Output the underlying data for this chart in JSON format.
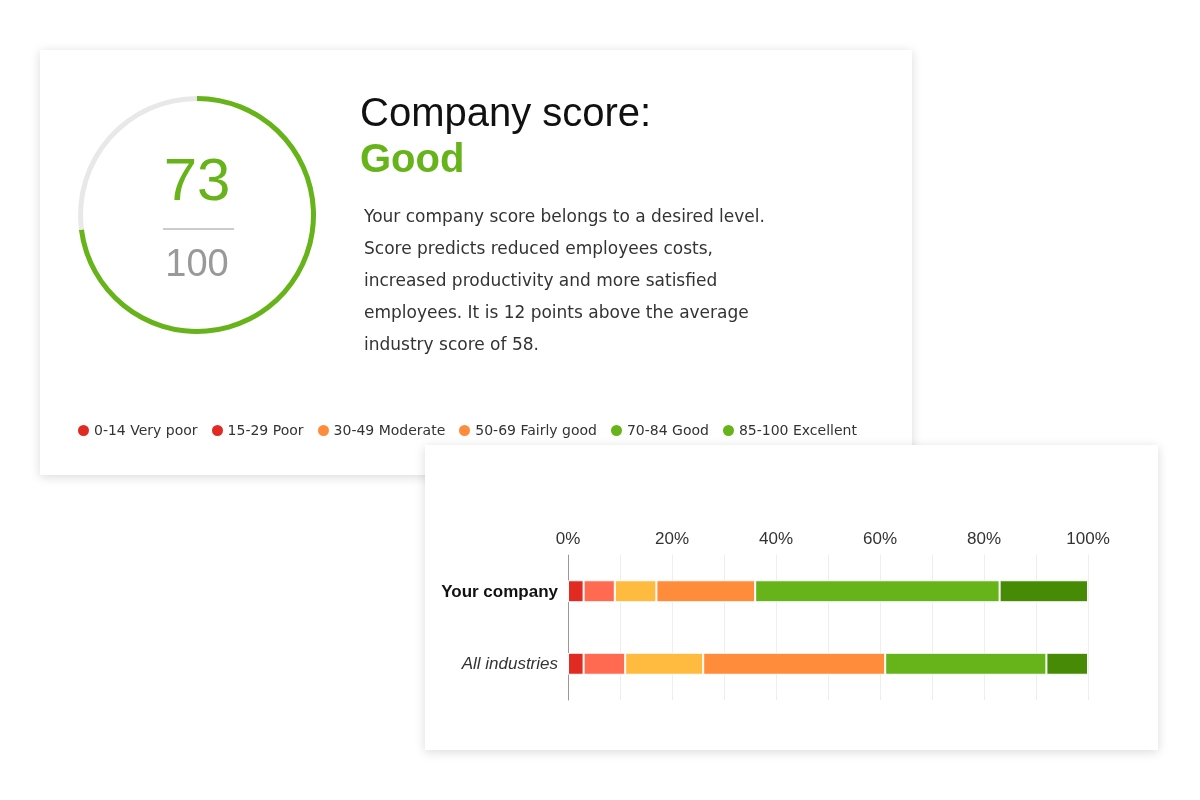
{
  "chart_data": [
    {
      "type": "donut",
      "title": "Company score:",
      "subtitle": "Good",
      "categories": [
        null,
        null
      ],
      "values": [
        73,
        27
      ],
      "colors": [
        "#66b31a",
        "#e8e8e8"
      ],
      "annotations": [
        "73",
        "100",
        "Your company score belongs to a desired level. Score predicts reduced employees costs, increased productivity and more satisfied employees. It is 12 points above the average industry score of 58.",
        "0-14 Very poor",
        "15-29 Poor",
        "30-49 Moderate",
        "50-69 Fairly good",
        "70-84 Good",
        "85-100 Excellent"
      ]
    },
    {
      "type": "bar",
      "orientation": "horizontal",
      "stacked": true,
      "categories": [
        "Your company",
        "All industries"
      ],
      "series": [
        {
          "color": "#e02a22",
          "values": [
            3,
            3
          ]
        },
        {
          "color": "#ff6a50",
          "values": [
            6,
            8
          ]
        },
        {
          "color": "#ffbb40",
          "values": [
            8,
            15
          ]
        },
        {
          "color": "#ff8c3a",
          "values": [
            19,
            35
          ]
        },
        {
          "color": "#66b31a",
          "values": [
            47,
            31
          ]
        },
        {
          "color": "#468a05",
          "values": [
            17,
            8
          ]
        }
      ],
      "xlim": [
        0,
        100
      ],
      "xticks": [
        {
          "value": 0,
          "label": "0%"
        },
        {
          "value": 10,
          "label": null
        },
        {
          "value": 20,
          "label": "20%"
        },
        {
          "value": 30,
          "label": null
        },
        {
          "value": 40,
          "label": "40%"
        },
        {
          "value": 50,
          "label": null
        },
        {
          "value": 60,
          "label": "60%"
        },
        {
          "value": 70,
          "label": null
        },
        {
          "value": 80,
          "label": "80%"
        },
        {
          "value": 90,
          "label": null
        },
        {
          "value": 100,
          "label": "100%"
        }
      ],
      "grid": "x"
    }
  ]
}
